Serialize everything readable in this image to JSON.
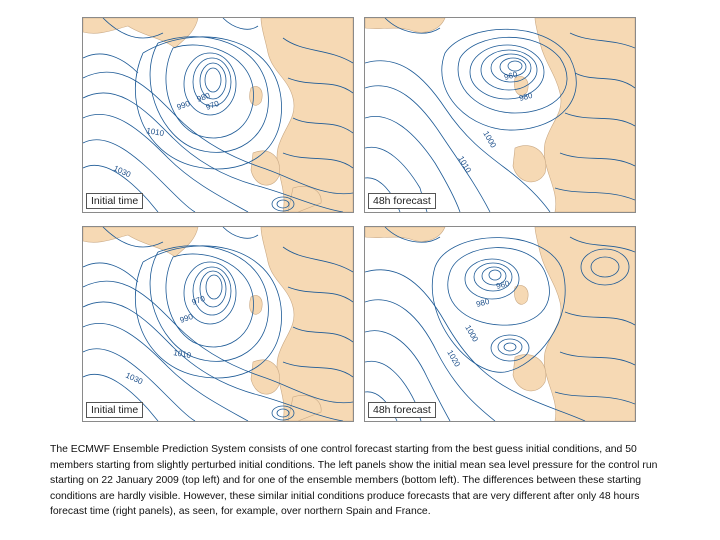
{
  "panels": [
    {
      "id": "initial_control",
      "label": "Initial time",
      "isobar_labels": [
        "980",
        "970",
        "990",
        "1010",
        "1030"
      ]
    },
    {
      "id": "forecast_control",
      "label": "48h forecast",
      "isobar_labels": [
        "960",
        "980",
        "1000",
        "1010"
      ]
    },
    {
      "id": "initial_member",
      "label": "Initial time",
      "isobar_labels": [
        "970",
        "990",
        "1010",
        "1030"
      ]
    },
    {
      "id": "forecast_member",
      "label": "48h forecast",
      "isobar_labels": [
        "960",
        "980",
        "1000",
        "1020"
      ]
    }
  ],
  "caption": "The ECMWF Ensemble Prediction System consists of one control forecast starting from the best guess initial conditions, and 50 members starting from slightly perturbed initial conditions. The left panels show the initial mean sea level pressure for the control run starting on 22 January 2009 (top left) and for one of the ensemble members (bottom left). The differences between these starting conditions are hardly visible. However, these similar initial conditions produce forecasts that are very different after only 48 hours forecast time (right panels), as seen, for example, over northern Spain and France.",
  "colors": {
    "land": "#f6d9b4",
    "coast": "#c9a985",
    "isobar": "#1d5a96",
    "sea": "#ffffff"
  }
}
